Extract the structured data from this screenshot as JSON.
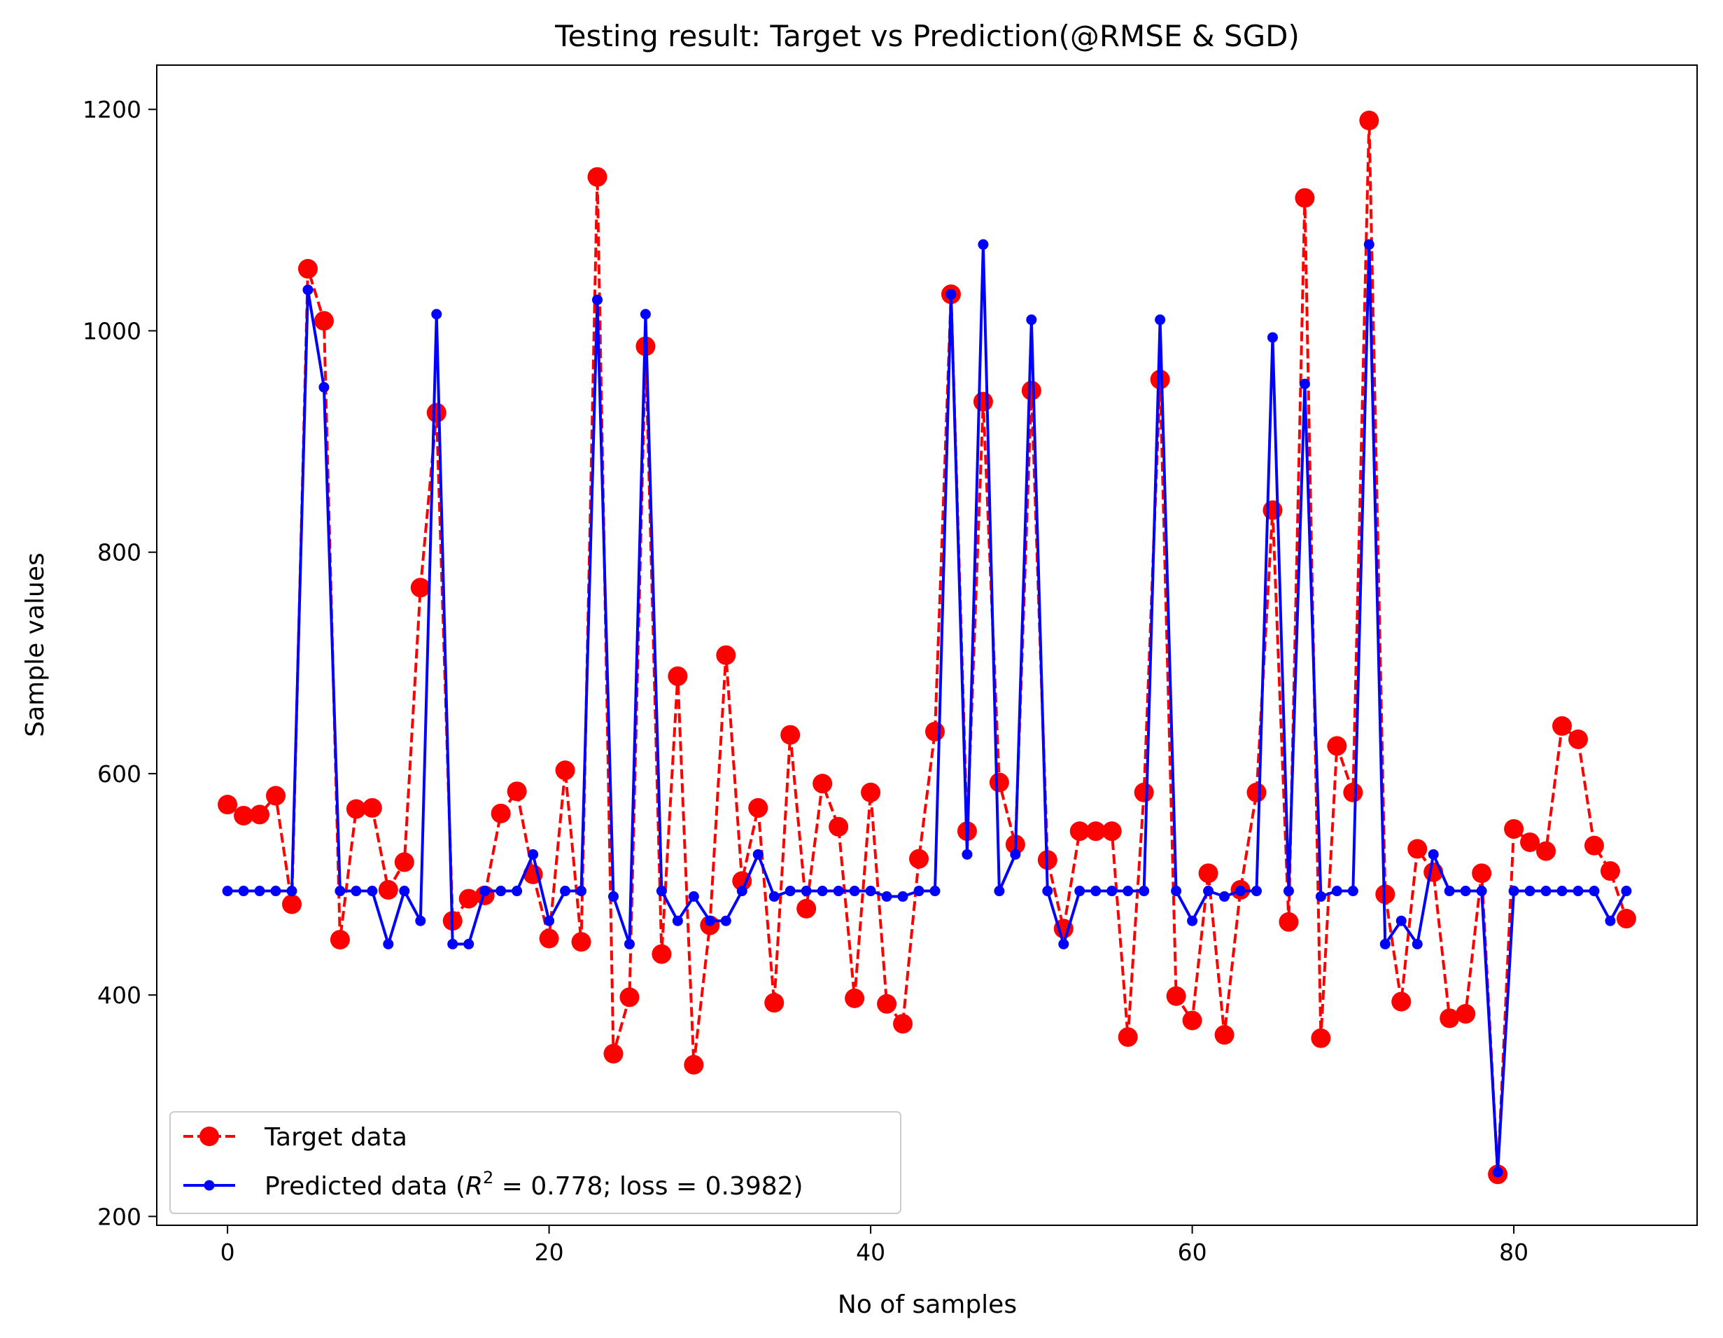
{
  "chart_data": {
    "type": "line",
    "title": "Testing result: Target vs Prediction(@RMSE & SGD)",
    "xlabel": "No of samples",
    "ylabel": "Sample values",
    "xlim": [
      -4.4,
      91.4
    ],
    "ylim": [
      192,
      1240
    ],
    "x_ticks": [
      0,
      20,
      40,
      60,
      80
    ],
    "y_ticks": [
      200,
      400,
      600,
      800,
      1000,
      1200
    ],
    "grid": false,
    "legend_position": "lower-left",
    "series": [
      {
        "name": "Target data",
        "color": "#ff0000",
        "line_style": "dashed",
        "marker": "large-circle",
        "values": [
          572,
          562,
          563,
          580,
          482,
          1056,
          1009,
          450,
          568,
          569,
          495,
          520,
          768,
          926,
          467,
          487,
          490,
          564,
          584,
          509,
          451,
          603,
          448,
          1139,
          347,
          398,
          986,
          437,
          688,
          337,
          463,
          707,
          503,
          569,
          393,
          635,
          478,
          591,
          552,
          397,
          583,
          392,
          374,
          523,
          638,
          1033,
          548,
          936,
          592,
          536,
          946,
          522,
          460,
          548,
          548,
          548,
          362,
          583,
          956,
          399,
          377,
          510,
          364,
          495,
          583,
          838,
          466,
          1120,
          361,
          625,
          583,
          1190,
          491,
          394,
          532,
          511,
          379,
          383,
          510,
          238,
          550,
          538,
          530,
          643,
          631,
          535,
          512,
          469
        ]
      },
      {
        "name": "Predicted data ($R^2$ = 0.778; loss = 0.3982)",
        "name_prefix": "Predicted data (",
        "name_r": "R",
        "name_sup": "2",
        "name_suffix": " = 0.778; loss = 0.3982)",
        "color": "#0000ff",
        "line_style": "solid",
        "marker": "small-circle",
        "values": [
          494,
          494,
          494,
          494,
          494,
          1037,
          949,
          494,
          494,
          494,
          446,
          494,
          467,
          1015,
          446,
          446,
          494,
          494,
          494,
          527,
          467,
          494,
          494,
          1028,
          489,
          446,
          1015,
          494,
          467,
          489,
          467,
          467,
          494,
          527,
          489,
          494,
          494,
          494,
          494,
          494,
          494,
          489,
          489,
          494,
          494,
          1033,
          527,
          1078,
          494,
          527,
          1010,
          494,
          446,
          494,
          494,
          494,
          494,
          494,
          1010,
          494,
          467,
          494,
          489,
          494,
          494,
          994,
          494,
          952,
          489,
          494,
          494,
          1078,
          446,
          467,
          446,
          527,
          494,
          494,
          494,
          240,
          494,
          494,
          494,
          494,
          494,
          494,
          467,
          494
        ]
      }
    ]
  }
}
